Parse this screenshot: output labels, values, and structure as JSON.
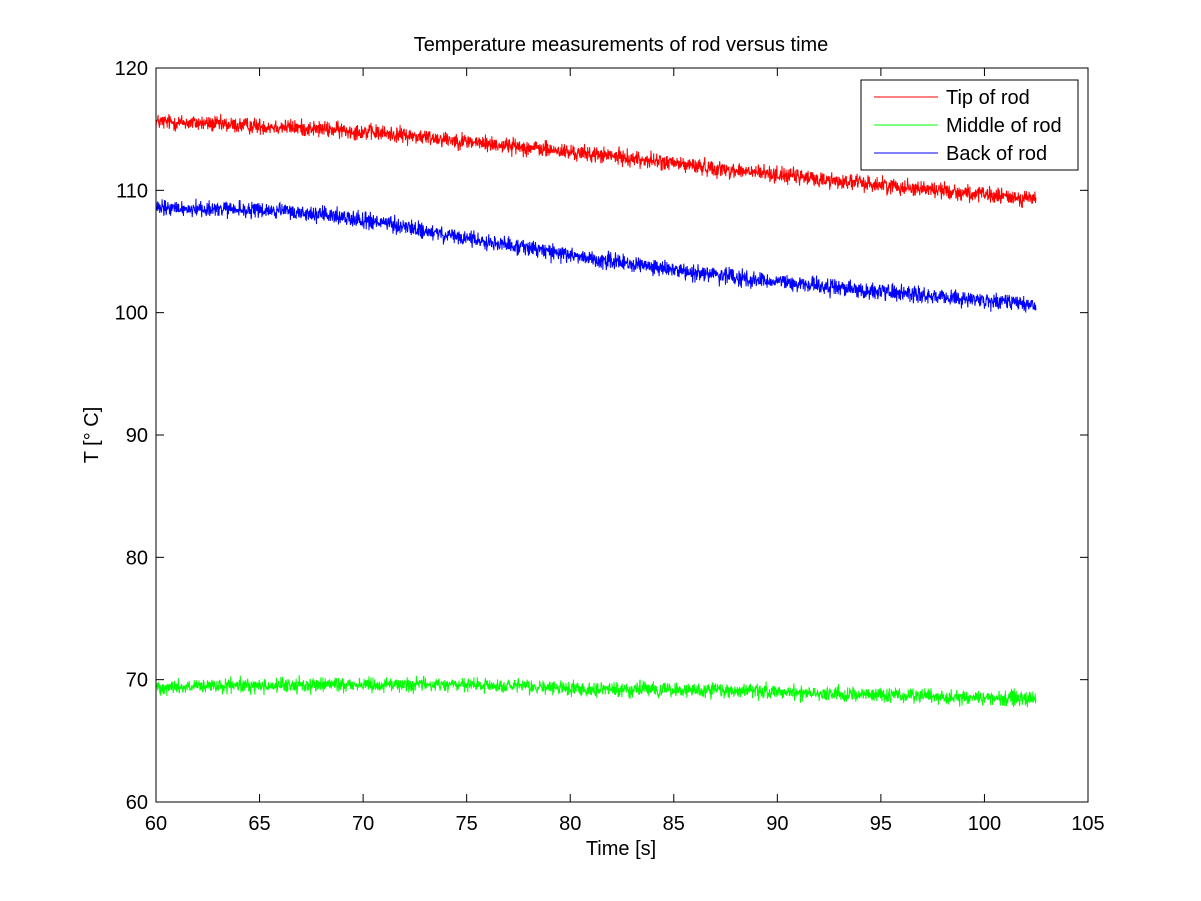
{
  "chart_data": {
    "type": "line",
    "title": "Temperature measurements of rod versus time",
    "xlabel": "Time [s]",
    "ylabel": "T [° C]",
    "xlim": [
      60,
      105
    ],
    "ylim": [
      60,
      120
    ],
    "x_ticks": [
      "60",
      "65",
      "70",
      "75",
      "80",
      "85",
      "90",
      "95",
      "100",
      "105"
    ],
    "y_ticks": [
      "60",
      "70",
      "80",
      "90",
      "100",
      "110",
      "120"
    ],
    "grid": false,
    "legend_position": "top-right",
    "series": [
      {
        "name": "Tip of rod",
        "color": "#ff0000",
        "x": [
          60,
          62,
          64,
          66,
          68,
          70,
          72,
          74,
          76,
          78,
          80,
          82,
          84,
          86,
          88,
          90,
          92,
          94,
          96,
          98,
          100,
          102.5
        ],
        "y": [
          115.6,
          115.5,
          115.3,
          115.2,
          115.0,
          114.8,
          114.5,
          114.2,
          113.8,
          113.5,
          113.1,
          112.8,
          112.4,
          112.0,
          111.6,
          111.3,
          110.9,
          110.6,
          110.3,
          110.0,
          109.6,
          109.3
        ],
        "noise_amplitude": 0.5
      },
      {
        "name": "Middle of rod",
        "color": "#00ff00",
        "x": [
          60,
          62,
          64,
          66,
          68,
          70,
          72,
          74,
          76,
          78,
          80,
          82,
          84,
          86,
          88,
          90,
          92,
          94,
          96,
          98,
          100,
          102.5
        ],
        "y": [
          69.4,
          69.4,
          69.5,
          69.5,
          69.6,
          69.6,
          69.6,
          69.6,
          69.5,
          69.4,
          69.3,
          69.2,
          69.2,
          69.1,
          69.1,
          69.0,
          68.9,
          68.8,
          68.7,
          68.6,
          68.5,
          68.5
        ],
        "noise_amplitude": 0.45
      },
      {
        "name": "Back of rod",
        "color": "#0000ff",
        "x": [
          60,
          62,
          64,
          66,
          68,
          70,
          72,
          74,
          76,
          78,
          80,
          82,
          84,
          86,
          88,
          90,
          92,
          94,
          96,
          98,
          100,
          102.5
        ],
        "y": [
          108.5,
          108.5,
          108.4,
          108.3,
          108.0,
          107.6,
          107.0,
          106.3,
          105.8,
          105.3,
          104.7,
          104.2,
          103.7,
          103.3,
          102.9,
          102.5,
          102.2,
          101.9,
          101.6,
          101.3,
          101.0,
          100.6
        ],
        "noise_amplitude": 0.5
      }
    ]
  }
}
